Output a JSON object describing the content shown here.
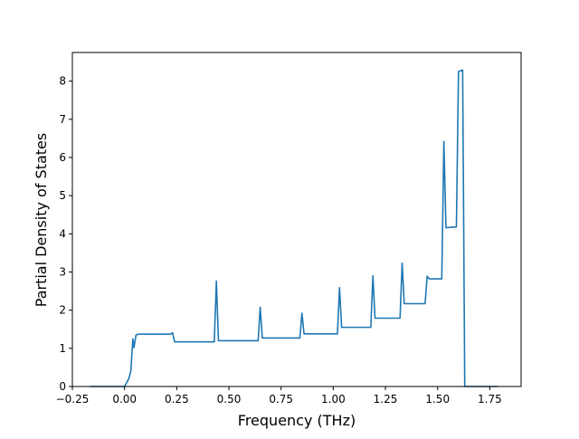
{
  "chart_data": {
    "type": "line",
    "title": "",
    "xlabel": "Frequency (THz)",
    "ylabel": "Partial Density of States",
    "xlim": [
      -0.25,
      1.9
    ],
    "ylim": [
      0,
      8.75
    ],
    "x_ticks": [
      -0.25,
      0.0,
      0.25,
      0.5,
      0.75,
      1.0,
      1.25,
      1.5,
      1.75
    ],
    "x_tick_labels": [
      "−0.25",
      "0.00",
      "0.25",
      "0.50",
      "0.75",
      "1.00",
      "1.25",
      "1.50",
      "1.75"
    ],
    "y_ticks": [
      0,
      1,
      2,
      3,
      4,
      5,
      6,
      7,
      8
    ],
    "y_tick_labels": [
      "0",
      "1",
      "2",
      "3",
      "4",
      "5",
      "6",
      "7",
      "8"
    ],
    "grid": false,
    "legend": "none",
    "series": [
      {
        "color": "#1f77b4",
        "x": [
          -0.165,
          0.0,
          0.01,
          0.02,
          0.03,
          0.04,
          0.045,
          0.055,
          0.065,
          0.08,
          0.22,
          0.23,
          0.24,
          0.43,
          0.44,
          0.45,
          0.64,
          0.65,
          0.66,
          0.84,
          0.85,
          0.86,
          1.02,
          1.03,
          1.04,
          1.18,
          1.19,
          1.2,
          1.32,
          1.33,
          1.34,
          1.44,
          1.45,
          1.46,
          1.52,
          1.53,
          1.54,
          1.59,
          1.6,
          1.62,
          1.63,
          1.79
        ],
        "y": [
          0.0,
          0.0,
          0.1,
          0.2,
          0.4,
          1.25,
          1.02,
          1.35,
          1.37,
          1.37,
          1.37,
          1.41,
          1.17,
          1.17,
          2.76,
          1.2,
          1.2,
          2.08,
          1.27,
          1.27,
          1.92,
          1.38,
          1.38,
          2.59,
          1.55,
          1.55,
          2.9,
          1.79,
          1.79,
          3.23,
          2.17,
          2.17,
          2.89,
          2.82,
          2.82,
          6.42,
          4.16,
          4.18,
          8.25,
          8.29,
          0.0,
          0.0
        ]
      }
    ]
  }
}
